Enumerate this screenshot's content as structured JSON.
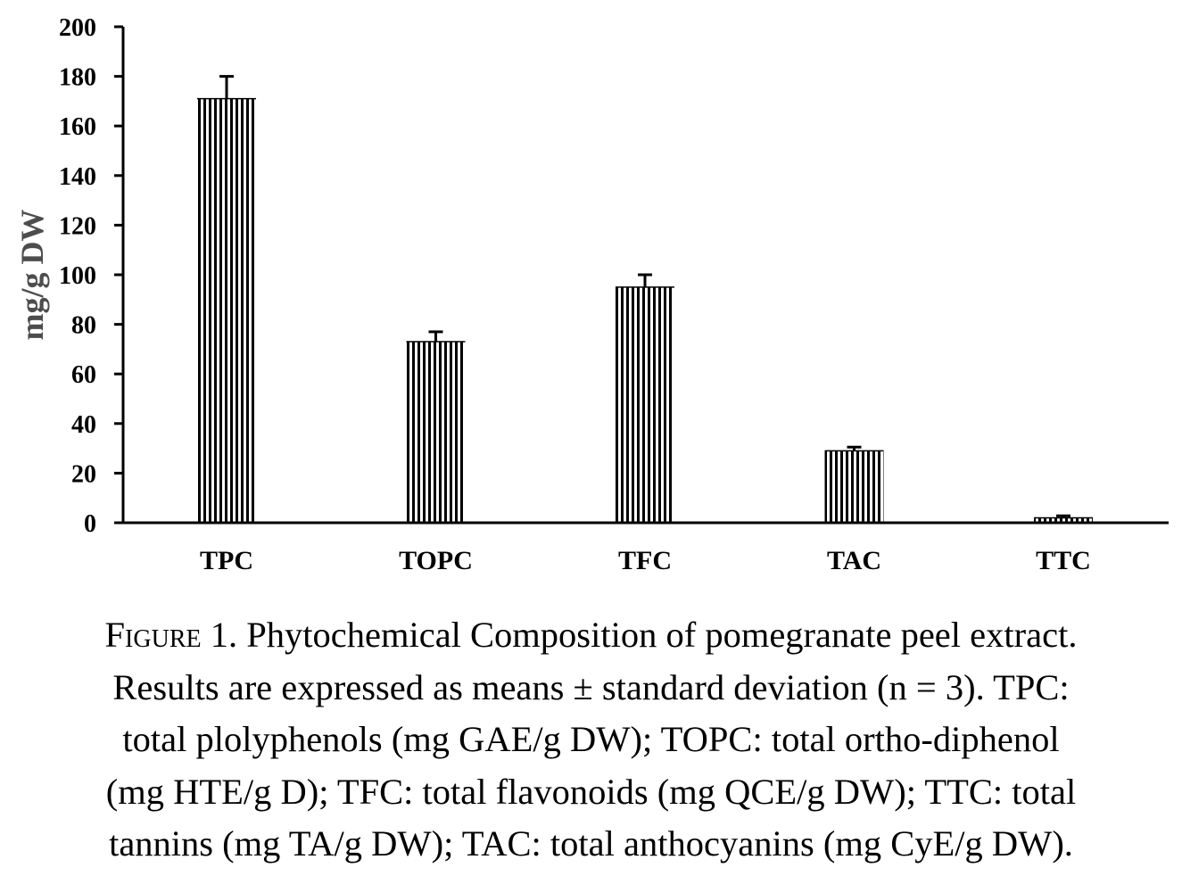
{
  "chart_data": {
    "type": "bar",
    "categories": [
      "TPC",
      "TOPC",
      "TFC",
      "TAC",
      "TTC"
    ],
    "values": [
      171,
      73,
      95,
      29,
      2
    ],
    "error": [
      9,
      4,
      5,
      1.5,
      0.8
    ],
    "ylabel": "mg/g DW",
    "xlabel": "",
    "ylim": [
      0,
      200
    ],
    "yticks": [
      0,
      20,
      40,
      60,
      80,
      100,
      120,
      140,
      160,
      180,
      200
    ],
    "bar_pattern": "vertical-stripes",
    "bar_color": "#000000",
    "grid": false
  },
  "caption": {
    "label": "Figure 1.",
    "line1_rest": " Phytochemical Composition of pomegranate peel extract.",
    "line2": "Results are expressed as means ± standard deviation (n = 3). TPC:",
    "line3": "total plolyphenols (mg GAE/g DW); TOPC: total ortho-diphenol",
    "line4": "(mg HTE/g D); TFC: total flavonoids (mg QCE/g DW); TTC: total",
    "line5": "tannins (mg TA/g DW); TAC: total anthocyanins (mg CyE/g DW)."
  }
}
